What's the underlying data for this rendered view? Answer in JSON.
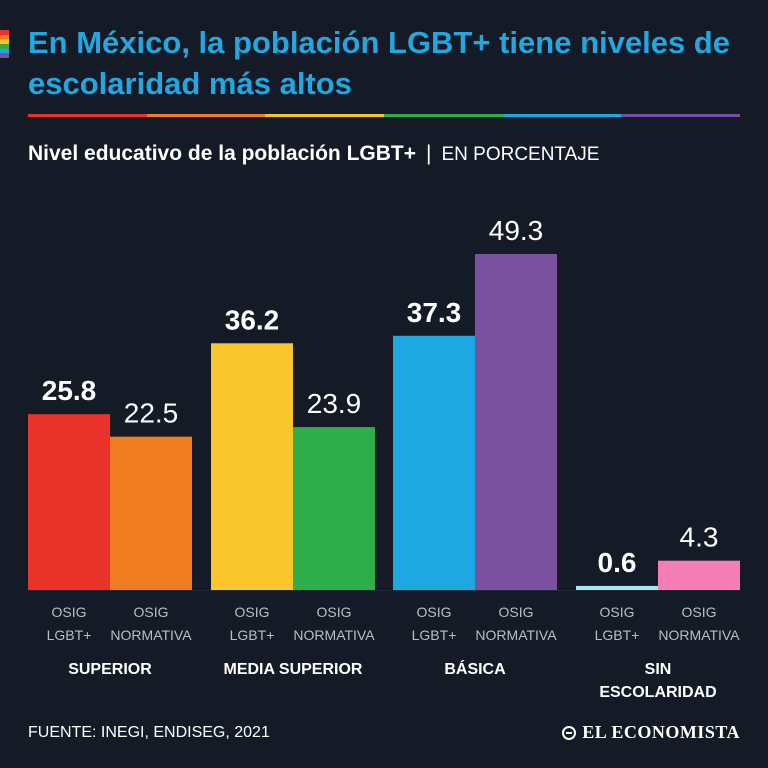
{
  "header": {
    "title": "En México, la población LGBT+ tiene niveles de escolaridad más altos",
    "subtitle": "Nivel educativo de la población LGBT+",
    "subtitle_separator": "|",
    "subtitle_unit": "EN PORCENTAJE"
  },
  "rainbow_colors": [
    "#e8322a",
    "#f07c22",
    "#f7c520",
    "#2fad4a",
    "#1ea8e2",
    "#7a4fa0"
  ],
  "chart_data": {
    "type": "bar",
    "ylim": [
      0,
      50
    ],
    "grid": false,
    "bar_line_color": "#1f2a38",
    "categories": [
      "SUPERIOR",
      "MEDIA SUPERIOR",
      "BÁSICA",
      "SIN ESCOLARIDAD"
    ],
    "category_labels": [
      [
        "SUPERIOR"
      ],
      [
        "MEDIA SUPERIOR"
      ],
      [
        "BÁSICA"
      ],
      [
        "SIN",
        "ESCOLARIDAD"
      ]
    ],
    "groups": [
      {
        "category": "SUPERIOR",
        "bars": [
          {
            "label": [
              "OSIG",
              "LGBT+"
            ],
            "value": 25.8,
            "display": "25.8",
            "color": "#e8322a",
            "bold": true
          },
          {
            "label": [
              "OSIG",
              "NORMATIVA"
            ],
            "value": 22.5,
            "display": "22.5",
            "color": "#f07c22",
            "bold": false
          }
        ]
      },
      {
        "category": "MEDIA SUPERIOR",
        "bars": [
          {
            "label": [
              "OSIG",
              "LGBT+"
            ],
            "value": 36.2,
            "display": "36.2",
            "color": "#f9c62b",
            "bold": true
          },
          {
            "label": [
              "OSIG",
              "NORMATIVA"
            ],
            "value": 23.9,
            "display": "23.9",
            "color": "#2fad4a",
            "bold": false
          }
        ]
      },
      {
        "category": "BÁSICA",
        "bars": [
          {
            "label": [
              "OSIG",
              "LGBT+"
            ],
            "value": 37.3,
            "display": "37.3",
            "color": "#1ea8e2",
            "bold": true
          },
          {
            "label": [
              "OSIG",
              "NORMATIVA"
            ],
            "value": 49.3,
            "display": "49.3",
            "color": "#7a519f",
            "bold": false
          }
        ]
      },
      {
        "category": "SIN ESCOLARIDAD",
        "bars": [
          {
            "label": [
              "OSIG",
              "LGBT+"
            ],
            "value": 0.6,
            "display": "0.6",
            "color": "#a9e4f2",
            "bold": true
          },
          {
            "label": [
              "OSIG",
              "NORMATIVA"
            ],
            "value": 4.3,
            "display": "4.3",
            "color": "#f47eb5",
            "bold": false
          }
        ]
      }
    ]
  },
  "footer": {
    "source": "FUENTE: INEGI, ENDISEG, 2021",
    "brand": "EL ECONOMISTA",
    "brand_icon": "el-economista-logo-icon"
  }
}
